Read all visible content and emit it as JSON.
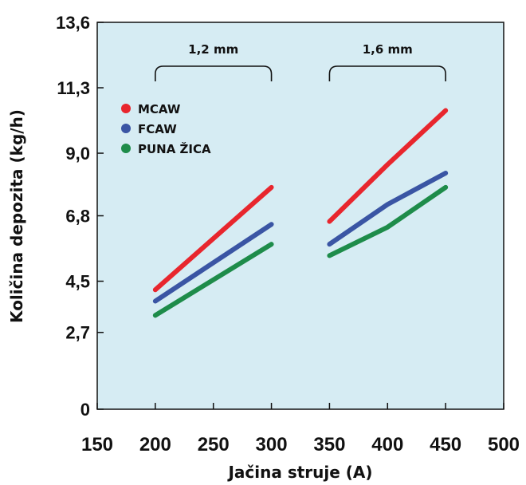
{
  "chart_data": {
    "type": "line",
    "xlabel": "Jačina struje (A)",
    "ylabel": "Količina depozita (kg/h)",
    "x_ticks": [
      "150",
      "200",
      "250",
      "300",
      "350",
      "400",
      "450",
      "500"
    ],
    "y_ticks": [
      "0",
      "2,7",
      "4,5",
      "6,8",
      "9,0",
      "11,3",
      "13,6"
    ],
    "xlim": [
      150,
      500
    ],
    "ylim": [
      0,
      13.6
    ],
    "y_tick_values": [
      0,
      2.7,
      4.5,
      6.8,
      9.0,
      11.3,
      13.6
    ],
    "grid": false,
    "legend_position": "top-left",
    "plot_background": "#d6ecf3",
    "annotations": [
      {
        "text": "1,2  mm",
        "x_from": 200,
        "x_to": 300
      },
      {
        "text": "1,6 mm",
        "x_from": 350,
        "x_to": 450
      }
    ],
    "series": [
      {
        "name": "MCAW",
        "color": "#e8262d",
        "segments": [
          {
            "x": [
              200,
              300
            ],
            "y": [
              4.2,
              7.8
            ]
          },
          {
            "x": [
              350,
              400,
              450
            ],
            "y": [
              6.6,
              8.6,
              10.5
            ]
          }
        ]
      },
      {
        "name": "FCAW",
        "color": "#3a55a4",
        "segments": [
          {
            "x": [
              200,
              300
            ],
            "y": [
              3.8,
              6.5
            ]
          },
          {
            "x": [
              350,
              400,
              450
            ],
            "y": [
              5.8,
              7.2,
              8.3
            ]
          }
        ]
      },
      {
        "name": "PUNA ŽICA",
        "color": "#1e8c4a",
        "segments": [
          {
            "x": [
              200,
              300
            ],
            "y": [
              3.3,
              5.8
            ]
          },
          {
            "x": [
              350,
              400,
              450
            ],
            "y": [
              5.4,
              6.4,
              7.8
            ]
          }
        ]
      }
    ]
  }
}
